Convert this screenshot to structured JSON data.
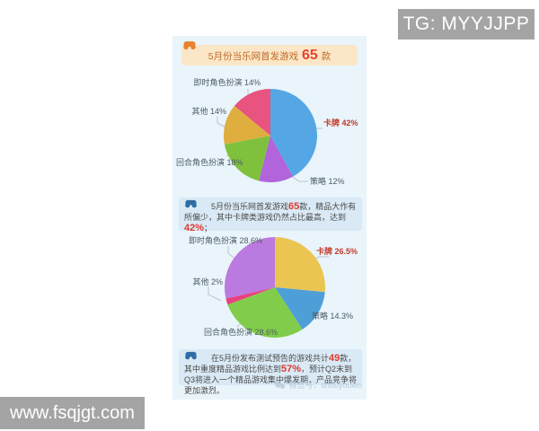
{
  "page": {
    "watermark_top_right": "TG: MYYJJPP",
    "watermark_bottom_left": "www.fsqjgt.com",
    "wechat_watermark": "微信号：shouyouwo"
  },
  "header": {
    "segments": [
      {
        "text": "5月份当乐网首发游戏 "
      },
      {
        "text": "65",
        "style": "big"
      },
      {
        "text": " 款"
      }
    ]
  },
  "notes": [
    {
      "segments": [
        {
          "text": "5月份当乐网首发游戏"
        },
        {
          "text": "65",
          "style": "red"
        },
        {
          "text": "款，精品大作有所偏少，其中卡牌类游戏仍然占比最高，达到"
        },
        {
          "text": "42%",
          "style": "red"
        },
        {
          "text": "；"
        }
      ]
    },
    {
      "segments": [
        {
          "text": "在5月份发布测试预告的游戏共计"
        },
        {
          "text": "49",
          "style": "red"
        },
        {
          "text": "款，其中重度精品游戏比例达到"
        },
        {
          "text": "57%",
          "style": "red"
        },
        {
          "text": "，预计Q2末到Q3将进入一个精品游戏集中爆发期，产品竞争将更加激烈。"
        }
      ]
    }
  ],
  "chart_data": [
    {
      "type": "pie",
      "title": "5月份当乐网首发游戏 65 款",
      "direction": "clockwise",
      "start_angle_deg": -90,
      "legend_position": "callout-labels",
      "slices": [
        {
          "label": "卡牌",
          "value": 42,
          "color": "#54a7e4",
          "display": "卡牌 42%",
          "emphasis": true
        },
        {
          "label": "策略",
          "value": 12,
          "color": "#b164dc",
          "display": "策略 12%"
        },
        {
          "label": "回合角色扮演",
          "value": 18,
          "color": "#7fc13d",
          "display": "回合角色扮演 18%"
        },
        {
          "label": "其他",
          "value": 14,
          "color": "#dfae3e",
          "display": "其他 14%"
        },
        {
          "label": "即时角色扮演",
          "value": 14,
          "color": "#e8537f",
          "display": "即时角色扮演 14%"
        }
      ]
    },
    {
      "type": "pie",
      "title": "",
      "direction": "clockwise",
      "start_angle_deg": -90,
      "legend_position": "callout-labels",
      "slices": [
        {
          "label": "卡牌",
          "value": 26.5,
          "color": "#ebc552",
          "display": "卡牌 26.5%",
          "emphasis": true
        },
        {
          "label": "策略",
          "value": 14.3,
          "color": "#4e9fd8",
          "display": "策略 14.3%"
        },
        {
          "label": "回合角色扮演",
          "value": 28.6,
          "color": "#81cd4b",
          "display": "回合角色扮演 28.6%"
        },
        {
          "label": "其他",
          "value": 2,
          "color": "#e8417d",
          "display": "其他 2%"
        },
        {
          "label": "即时角色扮演",
          "value": 28.6,
          "color": "#bb7adf",
          "display": "即时角色扮演 28.6%"
        }
      ]
    }
  ],
  "colors": {
    "panel_bg": "#e9f4fb",
    "note_bg": "#d9e9f5",
    "header_bg": "#fbe7c7",
    "header_text": "#bf6a2a",
    "highlight_red": "#e0392e",
    "emphasis_label_red": "#c23b2b",
    "watermark_bg": "#a4a4a4",
    "gamepad_orange": "#e8822e",
    "gamepad_blue": "#2d6da3"
  }
}
